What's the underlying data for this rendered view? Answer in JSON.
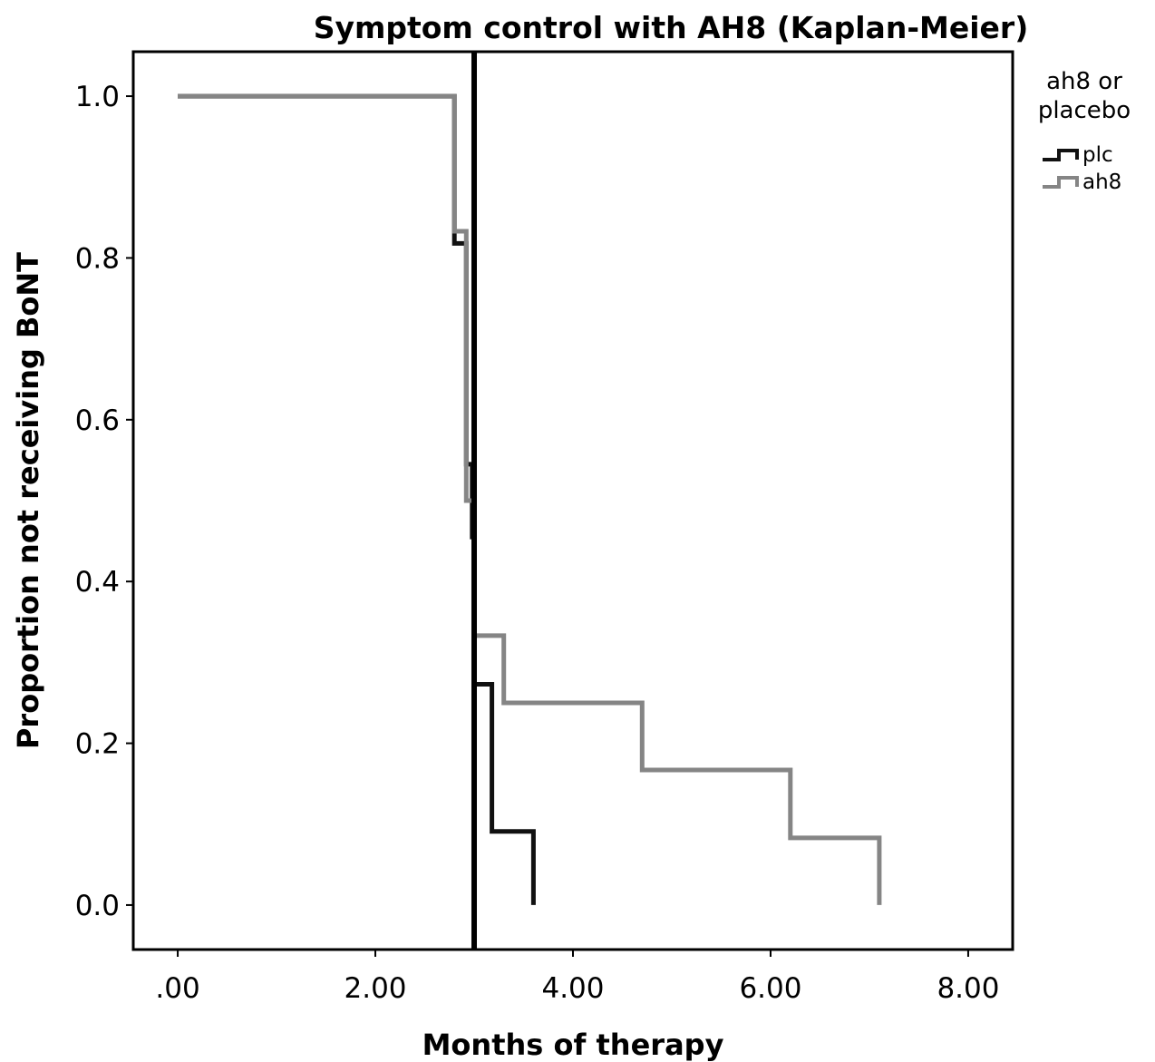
{
  "chart_data": {
    "type": "line",
    "title": "Symptom control with AH8 (Kaplan-Meier)",
    "xlabel": "Months of therapy",
    "ylabel": "Proportion not receiving BoNT",
    "xlim": [
      -0.45,
      8.45
    ],
    "ylim": [
      -0.055,
      1.055
    ],
    "x_ticks": [
      0,
      2,
      4,
      6,
      8
    ],
    "x_tick_labels": [
      ".00",
      "2.00",
      "4.00",
      "6.00",
      "8.00"
    ],
    "y_ticks": [
      0,
      0.2,
      0.4,
      0.6,
      0.8,
      1.0
    ],
    "y_tick_labels": [
      "0.0",
      "0.2",
      "0.4",
      "0.6",
      "0.8",
      "1.0"
    ],
    "grid": false,
    "legend_placement": "right",
    "legend_title_lines": [
      "ah8 or",
      "placebo"
    ],
    "reference_line_x": 3.0,
    "series": [
      {
        "name": "plc",
        "color": "#111111",
        "step": true,
        "x": [
          0,
          2.8,
          2.92,
          2.98,
          3.0,
          3.18,
          3.6
        ],
        "y": [
          1.0,
          0.818,
          0.545,
          0.455,
          0.273,
          0.091,
          0.0
        ]
      },
      {
        "name": "ah8",
        "color": "#858585",
        "step": true,
        "x": [
          0,
          2.8,
          2.92,
          3.0,
          3.3,
          4.7,
          6.2,
          7.1
        ],
        "y": [
          1.0,
          0.833,
          0.5,
          0.333,
          0.25,
          0.167,
          0.083,
          0.0
        ]
      }
    ]
  }
}
